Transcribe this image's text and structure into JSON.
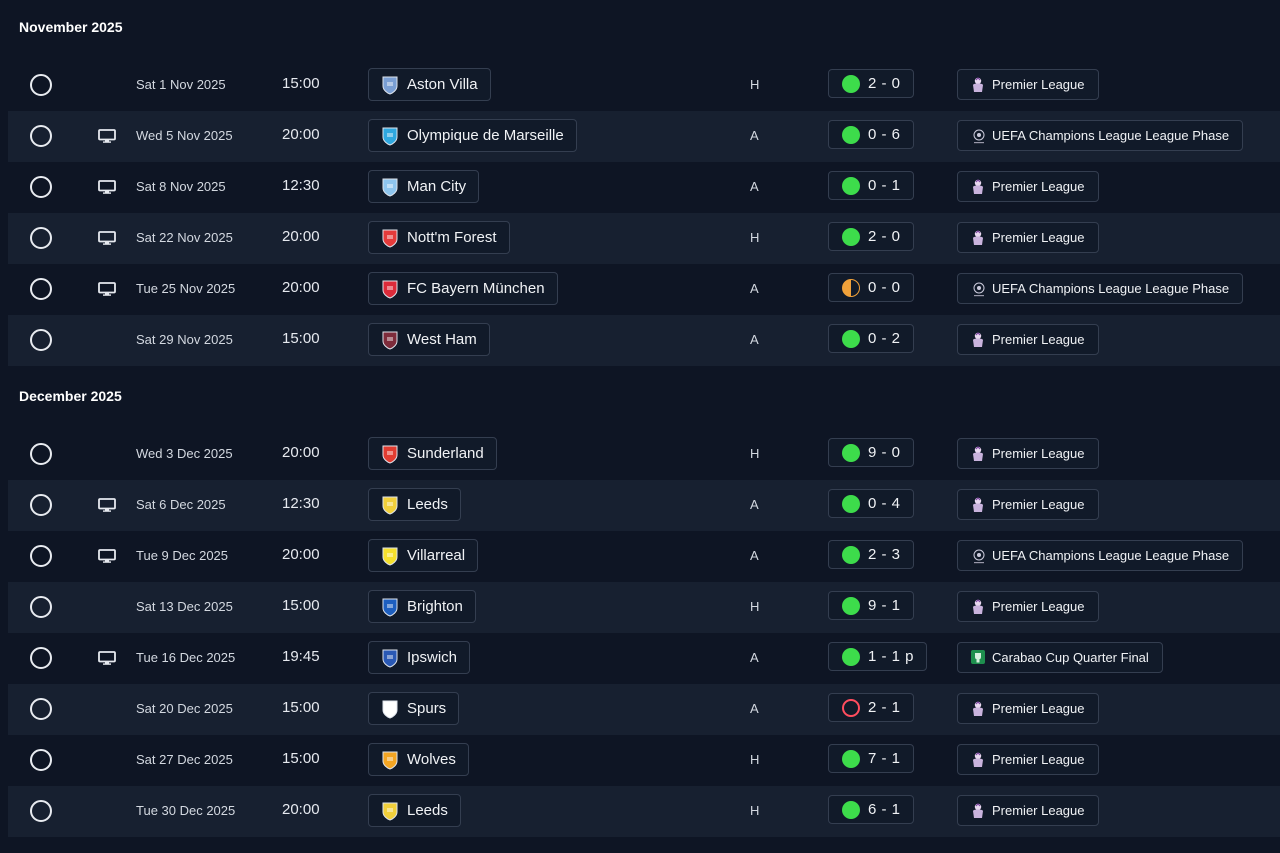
{
  "months": [
    {
      "title": "November 2025",
      "fixtures": [
        {
          "tv": false,
          "date": "Sat 1 Nov 2025",
          "time": "15:00",
          "team": "Aston Villa",
          "crest": "aston-villa-crest",
          "crest_color": "#7a9fd4",
          "venue": "H",
          "result": "2 - 0",
          "outcome": "win",
          "competition": "Premier League",
          "comp_type": "pl"
        },
        {
          "tv": true,
          "date": "Wed 5 Nov 2025",
          "time": "20:00",
          "team": "Olympique de Marseille",
          "crest": "marseille-crest",
          "crest_color": "#2fa8e0",
          "venue": "A",
          "result": "0 - 6",
          "outcome": "win",
          "competition": "UEFA Champions League League Phase",
          "comp_type": "ucl"
        },
        {
          "tv": true,
          "date": "Sat 8 Nov 2025",
          "time": "12:30",
          "team": "Man City",
          "crest": "man-city-crest",
          "crest_color": "#8ec5ee",
          "venue": "A",
          "result": "0 - 1",
          "outcome": "win",
          "competition": "Premier League",
          "comp_type": "pl"
        },
        {
          "tv": true,
          "date": "Sat 22 Nov 2025",
          "time": "20:00",
          "team": "Nott'm Forest",
          "crest": "nottm-forest-crest",
          "crest_color": "#e53b3b",
          "venue": "H",
          "result": "2 - 0",
          "outcome": "win",
          "competition": "Premier League",
          "comp_type": "pl"
        },
        {
          "tv": true,
          "date": "Tue 25 Nov 2025",
          "time": "20:00",
          "team": "FC Bayern München",
          "crest": "bayern-crest",
          "crest_color": "#dc2b3a",
          "venue": "A",
          "result": "0 - 0",
          "outcome": "draw",
          "competition": "UEFA Champions League League Phase",
          "comp_type": "ucl"
        },
        {
          "tv": false,
          "date": "Sat 29 Nov 2025",
          "time": "15:00",
          "team": "West Ham",
          "crest": "west-ham-crest",
          "crest_color": "#7d2c3b",
          "venue": "A",
          "result": "0 - 2",
          "outcome": "win",
          "competition": "Premier League",
          "comp_type": "pl"
        }
      ]
    },
    {
      "title": "December 2025",
      "fixtures": [
        {
          "tv": false,
          "date": "Wed 3 Dec 2025",
          "time": "20:00",
          "team": "Sunderland",
          "crest": "sunderland-crest",
          "crest_color": "#e03c31",
          "venue": "H",
          "result": "9 - 0",
          "outcome": "win",
          "competition": "Premier League",
          "comp_type": "pl"
        },
        {
          "tv": true,
          "date": "Sat 6 Dec 2025",
          "time": "12:30",
          "team": "Leeds",
          "crest": "leeds-crest",
          "crest_color": "#f2d03b",
          "venue": "A",
          "result": "0 - 4",
          "outcome": "win",
          "competition": "Premier League",
          "comp_type": "pl"
        },
        {
          "tv": true,
          "date": "Tue 9 Dec 2025",
          "time": "20:00",
          "team": "Villarreal",
          "crest": "villarreal-crest",
          "crest_color": "#f5e02d",
          "venue": "A",
          "result": "2 - 3",
          "outcome": "win",
          "competition": "UEFA Champions League League Phase",
          "comp_type": "ucl"
        },
        {
          "tv": false,
          "date": "Sat 13 Dec 2025",
          "time": "15:00",
          "team": "Brighton",
          "crest": "brighton-crest",
          "crest_color": "#1e5fbf",
          "venue": "H",
          "result": "9 - 1",
          "outcome": "win",
          "competition": "Premier League",
          "comp_type": "pl"
        },
        {
          "tv": true,
          "date": "Tue 16 Dec 2025",
          "time": "19:45",
          "team": "Ipswich",
          "crest": "ipswich-crest",
          "crest_color": "#2a59b5",
          "venue": "A",
          "result": "1 - 1 p",
          "outcome": "win",
          "competition": "Carabao Cup Quarter Final",
          "comp_type": "carabao"
        },
        {
          "tv": false,
          "date": "Sat 20 Dec 2025",
          "time": "15:00",
          "team": "Spurs",
          "crest": "spurs-crest",
          "crest_color": "#ffffff",
          "venue": "A",
          "result": "2 - 1",
          "outcome": "loss",
          "competition": "Premier League",
          "comp_type": "pl"
        },
        {
          "tv": false,
          "date": "Sat 27 Dec 2025",
          "time": "15:00",
          "team": "Wolves",
          "crest": "wolves-crest",
          "crest_color": "#f5a623",
          "venue": "H",
          "result": "7 - 1",
          "outcome": "win",
          "competition": "Premier League",
          "comp_type": "pl"
        },
        {
          "tv": false,
          "date": "Tue 30 Dec 2025",
          "time": "20:00",
          "team": "Leeds",
          "crest": "leeds-crest",
          "crest_color": "#f2d03b",
          "venue": "H",
          "result": "6 - 1",
          "outcome": "win",
          "competition": "Premier League",
          "comp_type": "pl"
        }
      ]
    }
  ]
}
